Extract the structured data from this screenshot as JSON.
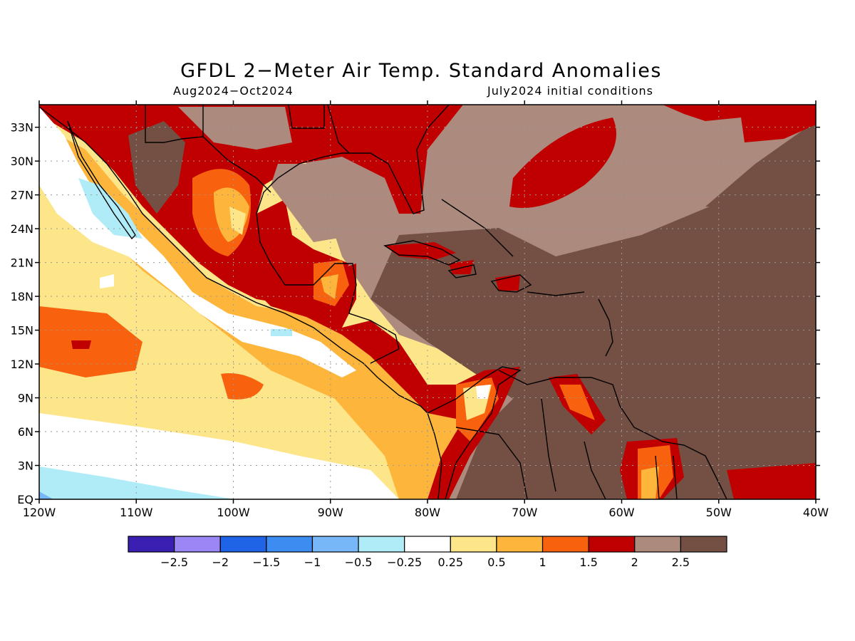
{
  "header": {
    "title": "GFDL 2−Meter Air Temp. Standard Anomalies",
    "period": "Aug2024−Oct2024",
    "initial_conditions": "July2024 initial conditions"
  },
  "map": {
    "lon_range": [
      -120,
      -40
    ],
    "lat_range": [
      0,
      35
    ],
    "lat_labels": [
      "EQ",
      "3N",
      "6N",
      "9N",
      "12N",
      "15N",
      "18N",
      "21N",
      "24N",
      "27N",
      "30N",
      "33N"
    ],
    "lon_labels": [
      "120W",
      "110W",
      "100W",
      "90W",
      "80W",
      "70W",
      "60W",
      "50W",
      "40W"
    ],
    "gridlines": "dotted"
  },
  "colorbar": {
    "colors": [
      "#3b1fb3",
      "#9c86f5",
      "#1f63e6",
      "#3c8cf2",
      "#78b7f7",
      "#b0ecf8",
      "#ffffff",
      "#fde58a",
      "#fdb53c",
      "#f8620e",
      "#c00000",
      "#ad8a7e",
      "#744f44"
    ],
    "labels": [
      "−2.5",
      "−2",
      "−1.5",
      "−1",
      "−0.5",
      "−0.25",
      "0.25",
      "0.5",
      "1",
      "1.5",
      "2",
      "2.5"
    ]
  }
}
